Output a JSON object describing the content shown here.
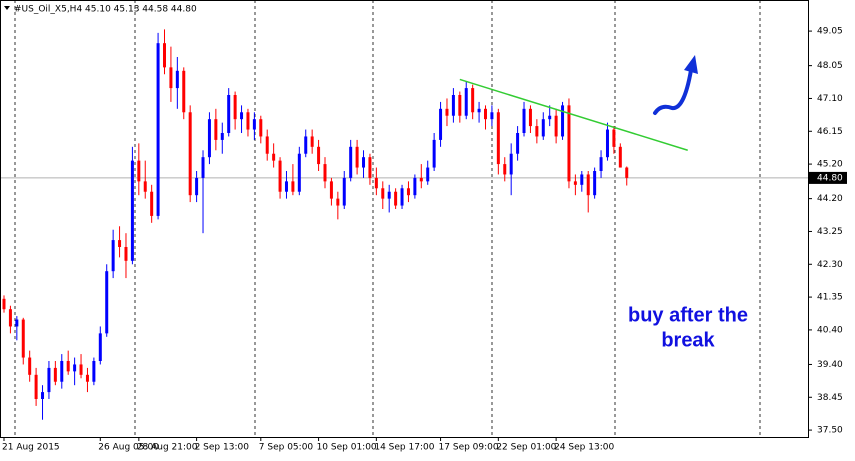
{
  "chart_data": {
    "type": "candlestick",
    "title": "#US_Oil_X5,H4  45.10 45.13 44.58 44.80",
    "categories": [
      "21 Aug 2015",
      null,
      null,
      null,
      null,
      null,
      null,
      null,
      null,
      null,
      null,
      null,
      null,
      null,
      null,
      "26 Aug 05:00",
      null,
      null,
      null,
      null,
      null,
      "28 Aug 21:00",
      null,
      null,
      null,
      null,
      null,
      null,
      null,
      null,
      "2 Sep 13:00",
      null,
      null,
      null,
      null,
      null,
      null,
      null,
      null,
      null,
      "7 Sep 05:00",
      null,
      null,
      null,
      null,
      null,
      null,
      null,
      null,
      "10 Sep 01:00",
      null,
      null,
      null,
      null,
      null,
      null,
      null,
      null,
      "14 Sep 17:00",
      null,
      null,
      null,
      null,
      null,
      null,
      null,
      null,
      null,
      "17 Sep 09:00",
      null,
      null,
      null,
      null,
      null,
      null,
      null,
      null,
      "22 Sep 01:00",
      null,
      null,
      null,
      null,
      null,
      null,
      null,
      null,
      "24 Sep 13:00",
      null,
      null,
      null,
      null,
      null,
      null,
      null,
      null,
      null,
      null,
      null
    ],
    "open": [
      41.3,
      41.0,
      40.5,
      40.7,
      39.6,
      39.1,
      38.4,
      38.6,
      39.3,
      38.9,
      39.5,
      39.2,
      39.4,
      39.1,
      38.9,
      39.5,
      40.3,
      42.1,
      43.0,
      42.8,
      42.4,
      45.3,
      44.7,
      44.4,
      43.7,
      48.7,
      48.0,
      47.4,
      47.9,
      46.7,
      44.3,
      44.8,
      45.4,
      46.5,
      45.9,
      46.1,
      47.2,
      46.5,
      46.7,
      46.2,
      46.5,
      46.0,
      45.5,
      45.3,
      44.4,
      44.7,
      44.4,
      45.5,
      46.0,
      45.7,
      45.2,
      44.7,
      44.2,
      44.0,
      44.8,
      45.7,
      45.1,
      45.4,
      44.8,
      44.5,
      44.2,
      44.4,
      44.0,
      44.5,
      44.3,
      44.8,
      44.7,
      45.1,
      45.9,
      46.8,
      46.6,
      47.2,
      46.6,
      47.4,
      46.7,
      46.8,
      46.5,
      46.7,
      45.2,
      44.9,
      45.5,
      46.1,
      46.8,
      46.3,
      46.0,
      46.5,
      46.6,
      46.0,
      46.9,
      44.7,
      44.6,
      44.9,
      44.3,
      45.0,
      45.4,
      46.2,
      45.7,
      45.1
    ],
    "high": [
      41.4,
      41.1,
      40.8,
      40.75,
      39.8,
      39.3,
      38.8,
      39.5,
      39.5,
      39.7,
      39.8,
      39.6,
      39.7,
      39.3,
      39.6,
      40.5,
      42.3,
      43.3,
      43.4,
      43.2,
      45.7,
      45.8,
      45.3,
      44.6,
      49.0,
      49.1,
      48.6,
      48.3,
      48.0,
      46.9,
      45.0,
      45.6,
      46.7,
      46.8,
      46.4,
      47.4,
      47.3,
      46.9,
      46.8,
      46.7,
      46.6,
      46.2,
      45.8,
      45.4,
      45.0,
      45.2,
      45.7,
      46.2,
      46.2,
      45.9,
      45.4,
      44.8,
      44.4,
      45.0,
      45.9,
      45.9,
      45.6,
      45.5,
      45.1,
      44.7,
      44.6,
      44.5,
      44.6,
      44.7,
      44.9,
      45.2,
      45.3,
      46.1,
      47.0,
      47.1,
      47.4,
      47.3,
      47.6,
      47.5,
      47.0,
      46.9,
      46.9,
      46.8,
      45.4,
      45.8,
      46.3,
      47.0,
      46.9,
      46.5,
      46.7,
      46.9,
      46.8,
      47.0,
      47.1,
      44.9,
      45.0,
      45.0,
      45.1,
      45.6,
      46.4,
      46.3,
      45.8,
      45.13
    ],
    "low": [
      40.9,
      40.3,
      40.1,
      39.4,
      38.9,
      38.2,
      37.8,
      38.4,
      38.8,
      38.7,
      39.1,
      38.8,
      39.0,
      38.6,
      38.8,
      39.4,
      40.2,
      41.9,
      42.5,
      41.9,
      42.3,
      44.3,
      44.2,
      43.5,
      43.6,
      47.8,
      47.0,
      46.8,
      46.5,
      44.1,
      44.1,
      43.2,
      45.2,
      45.6,
      45.5,
      46.0,
      46.2,
      46.1,
      46.0,
      45.9,
      45.8,
      45.3,
      45.1,
      44.2,
      44.2,
      44.3,
      44.3,
      45.4,
      45.5,
      45.0,
      44.5,
      44.0,
      43.6,
      43.9,
      44.7,
      44.9,
      44.8,
      44.6,
      44.3,
      43.9,
      43.8,
      43.9,
      43.9,
      44.1,
      44.2,
      44.5,
      44.6,
      45.0,
      45.7,
      46.3,
      46.4,
      46.4,
      46.5,
      46.5,
      46.4,
      46.2,
      46.3,
      44.9,
      44.7,
      44.3,
      45.3,
      46.0,
      46.1,
      45.8,
      45.9,
      46.3,
      45.8,
      45.9,
      44.5,
      44.3,
      44.4,
      43.8,
      44.2,
      44.8,
      45.3,
      45.5,
      45.1,
      44.58
    ],
    "close": [
      41.0,
      40.5,
      40.7,
      39.6,
      39.1,
      38.4,
      38.6,
      39.3,
      38.9,
      39.5,
      39.2,
      39.4,
      39.1,
      38.9,
      39.5,
      40.3,
      42.1,
      43.0,
      42.8,
      42.4,
      45.3,
      44.7,
      44.4,
      43.7,
      48.7,
      48.0,
      47.4,
      47.9,
      46.7,
      44.3,
      44.8,
      45.4,
      46.5,
      45.9,
      46.1,
      47.2,
      46.5,
      46.7,
      46.2,
      46.5,
      46.0,
      45.5,
      45.3,
      44.4,
      44.7,
      44.4,
      45.5,
      46.0,
      45.7,
      45.2,
      44.7,
      44.2,
      44.0,
      44.8,
      45.7,
      45.1,
      45.4,
      44.8,
      44.5,
      44.2,
      44.4,
      44.0,
      44.5,
      44.3,
      44.8,
      44.7,
      45.1,
      45.9,
      46.8,
      46.6,
      47.2,
      46.6,
      47.4,
      46.7,
      46.8,
      46.5,
      46.7,
      45.2,
      44.9,
      45.5,
      46.1,
      46.8,
      46.3,
      46.0,
      46.5,
      46.6,
      46.0,
      46.9,
      44.7,
      44.6,
      44.9,
      44.3,
      45.0,
      45.4,
      46.2,
      45.7,
      45.1,
      44.8
    ],
    "up_color": "#0000ff",
    "down_color": "#ff0000",
    "ylim": [
      37.3,
      49.95
    ],
    "yticks": [
      49.05,
      48.05,
      {
        "value": 47.1,
        "label": "47.10"
      },
      46.15,
      {
        "value": 45.2,
        "label": "45.20"
      },
      {
        "value": 44.2,
        "label": "44.20"
      },
      43.25,
      {
        "value": 42.3,
        "label": "42.30"
      },
      41.35,
      {
        "value": 40.4,
        "label": "40.40"
      },
      {
        "value": 39.4,
        "label": "39.40"
      },
      38.45,
      {
        "value": 37.5,
        "label": "37.50"
      }
    ],
    "current_price": {
      "value": 44.8,
      "label": "44.80"
    },
    "trendline": {
      "color": "#33cc33",
      "start": [
        71,
        47.65
      ],
      "end": [
        106.5,
        45.6
      ]
    },
    "annotation": [
      "buy after the",
      "break"
    ]
  }
}
